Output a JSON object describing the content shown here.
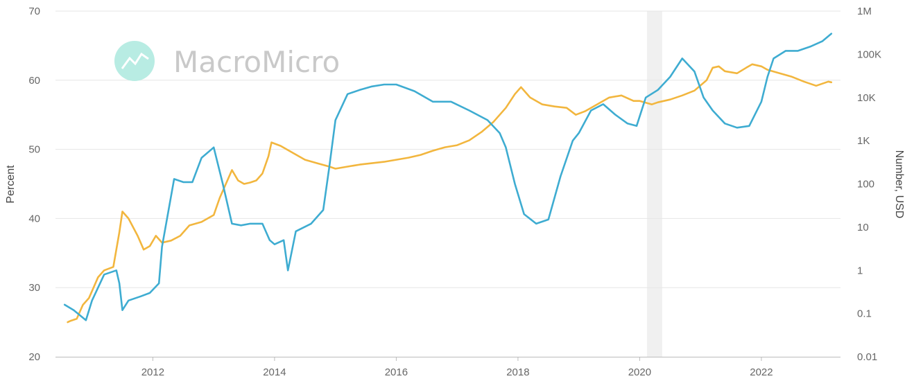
{
  "watermark": {
    "text": "MacroMicro"
  },
  "chart_data": {
    "type": "line",
    "title": "",
    "ylabel_left": "Percent",
    "ylabel_right": "Number, USD",
    "x_range": [
      2010.4,
      2023.3
    ],
    "x_ticks": [
      {
        "value": 2012,
        "label": "2012"
      },
      {
        "value": 2014,
        "label": "2014"
      },
      {
        "value": 2016,
        "label": "2016"
      },
      {
        "value": 2018,
        "label": "2018"
      },
      {
        "value": 2020,
        "label": "2020"
      },
      {
        "value": 2022,
        "label": "2022"
      }
    ],
    "y_left": {
      "range": [
        20,
        70
      ],
      "ticks": [
        {
          "value": 20,
          "label": "20"
        },
        {
          "value": 30,
          "label": "30"
        },
        {
          "value": 40,
          "label": "40"
        },
        {
          "value": 50,
          "label": "50"
        },
        {
          "value": 60,
          "label": "60"
        },
        {
          "value": 70,
          "label": "70"
        }
      ]
    },
    "y_right": {
      "scale": "log",
      "range": [
        0.01,
        1000000
      ],
      "ticks": [
        {
          "value": 0.01,
          "label": "0.01"
        },
        {
          "value": 0.1,
          "label": "0.1"
        },
        {
          "value": 1,
          "label": "1"
        },
        {
          "value": 10,
          "label": "10"
        },
        {
          "value": 100,
          "label": "100"
        },
        {
          "value": 1000,
          "label": "1K"
        },
        {
          "value": 10000,
          "label": "10K"
        },
        {
          "value": 100000,
          "label": "100K"
        },
        {
          "value": 1000000,
          "label": "1M"
        }
      ]
    },
    "grid": true,
    "legend": "none",
    "shaded_regions": [
      {
        "x0": 2020.12,
        "x1": 2020.37,
        "color": "#f0f0f0"
      }
    ],
    "series": [
      {
        "axis": "left",
        "color": "#f2b63e",
        "x": [
          2010.6,
          2010.65,
          2010.75,
          2010.85,
          2010.95,
          2011.0,
          2011.1,
          2011.2,
          2011.35,
          2011.45,
          2011.5,
          2011.6,
          2011.75,
          2011.85,
          2011.95,
          2012.05,
          2012.15,
          2012.3,
          2012.45,
          2012.6,
          2012.8,
          2013.0,
          2013.1,
          2013.2,
          2013.3,
          2013.4,
          2013.5,
          2013.6,
          2013.7,
          2013.8,
          2013.9,
          2013.95,
          2014.1,
          2014.3,
          2014.5,
          2014.7,
          2014.9,
          2015.0,
          2015.2,
          2015.4,
          2015.6,
          2015.8,
          2016.0,
          2016.2,
          2016.4,
          2016.6,
          2016.8,
          2017.0,
          2017.2,
          2017.4,
          2017.6,
          2017.8,
          2017.95,
          2018.05,
          2018.2,
          2018.4,
          2018.6,
          2018.8,
          2018.95,
          2019.1,
          2019.3,
          2019.5,
          2019.7,
          2019.9,
          2020.0,
          2020.2,
          2020.3,
          2020.5,
          2020.7,
          2020.9,
          2021.1,
          2021.2,
          2021.3,
          2021.4,
          2021.6,
          2021.75,
          2021.85,
          2022.0,
          2022.1,
          2022.3,
          2022.5,
          2022.7,
          2022.9,
          2023.1,
          2023.15
        ],
        "values": [
          25.0,
          25.2,
          25.5,
          27.5,
          28.5,
          29.5,
          31.5,
          32.5,
          33.0,
          38.0,
          41.0,
          40.0,
          37.5,
          35.5,
          36.0,
          37.5,
          36.5,
          36.8,
          37.5,
          39.0,
          39.5,
          40.5,
          43.0,
          45.0,
          47.0,
          45.5,
          45.0,
          45.2,
          45.5,
          46.5,
          49.0,
          51.0,
          50.5,
          49.5,
          48.5,
          48.0,
          47.5,
          47.2,
          47.5,
          47.8,
          48.0,
          48.2,
          48.5,
          48.8,
          49.2,
          49.8,
          50.3,
          50.6,
          51.3,
          52.5,
          54.0,
          56.0,
          58.0,
          59.0,
          57.5,
          56.5,
          56.2,
          56.0,
          55.0,
          55.5,
          56.5,
          57.5,
          57.8,
          57.0,
          57.0,
          56.5,
          56.8,
          57.2,
          57.8,
          58.5,
          60.0,
          61.8,
          62.0,
          61.3,
          61.0,
          61.8,
          62.3,
          62.0,
          61.5,
          61.0,
          60.5,
          59.8,
          59.2,
          59.8,
          59.7
        ]
      },
      {
        "axis": "right",
        "color": "#3eacd1",
        "x": [
          2010.55,
          2010.7,
          2010.9,
          2011.0,
          2011.2,
          2011.4,
          2011.45,
          2011.5,
          2011.6,
          2011.8,
          2011.95,
          2012.1,
          2012.15,
          2012.35,
          2012.5,
          2012.65,
          2012.8,
          2013.0,
          2013.15,
          2013.3,
          2013.45,
          2013.6,
          2013.8,
          2013.92,
          2014.0,
          2014.15,
          2014.22,
          2014.35,
          2014.6,
          2014.8,
          2014.9,
          2015.0,
          2015.2,
          2015.4,
          2015.6,
          2015.8,
          2016.0,
          2016.3,
          2016.6,
          2016.9,
          2017.2,
          2017.5,
          2017.7,
          2017.8,
          2017.95,
          2018.1,
          2018.3,
          2018.5,
          2018.7,
          2018.9,
          2019.0,
          2019.2,
          2019.4,
          2019.6,
          2019.8,
          2019.95,
          2020.1,
          2020.3,
          2020.5,
          2020.7,
          2020.9,
          2021.05,
          2021.2,
          2021.4,
          2021.6,
          2021.8,
          2022.0,
          2022.1,
          2022.2,
          2022.4,
          2022.6,
          2022.8,
          2023.0,
          2023.15
        ],
        "values": [
          0.16,
          0.12,
          0.07,
          0.2,
          0.8,
          1.0,
          0.5,
          0.12,
          0.2,
          0.25,
          0.3,
          0.5,
          3.5,
          130.0,
          110.0,
          110.0,
          400.0,
          700.0,
          100.0,
          12.0,
          11.0,
          12.0,
          12.0,
          5.0,
          4.0,
          5.0,
          1.0,
          8.0,
          12.0,
          25.0,
          250.0,
          3000.0,
          12000.0,
          15000.0,
          18000.0,
          20000.0,
          20000.0,
          14000.0,
          8000.0,
          8000.0,
          5000.0,
          3000.0,
          1500.0,
          700.0,
          100.0,
          20.0,
          12.0,
          15.0,
          150.0,
          1000.0,
          1500.0,
          5000.0,
          7000.0,
          4000.0,
          2500.0,
          2200.0,
          10000.0,
          15000.0,
          30000.0,
          80000.0,
          40000.0,
          10000.0,
          5000.0,
          2500.0,
          2000.0,
          2200.0,
          8000.0,
          30000.0,
          80000.0,
          120000.0,
          120000.0,
          150000.0,
          200000.0,
          300000.0
        ]
      }
    ]
  }
}
